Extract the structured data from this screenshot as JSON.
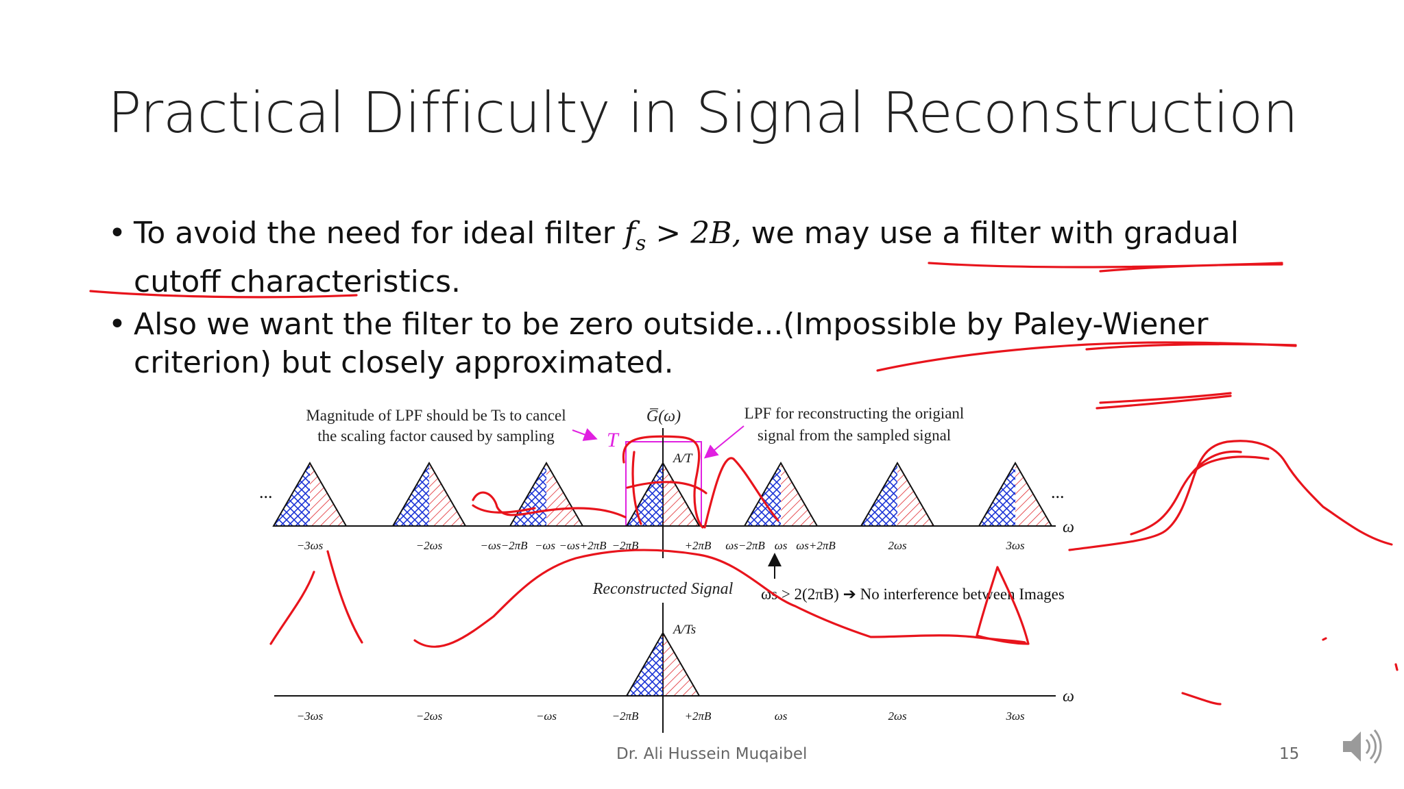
{
  "slide": {
    "title": "Practical Difficulty in Signal Reconstruction",
    "bullets": [
      {
        "before": "To avoid the need for ideal filter ",
        "math_fs": "f",
        "math_sub": "s",
        "math_rest": " > 2B,",
        "after": " we may use a filter with gradual cutoff characteristics."
      },
      {
        "text": "Also we want the filter to be zero outside...(Impossible by Paley-Wiener criterion) but closely approximated."
      }
    ],
    "footer_author": "Dr. Ali Hussein Muqaibel",
    "page_number": "15"
  },
  "figure": {
    "annotation_left_line1": "Magnitude of LPF should be Ts to cancel",
    "annotation_left_line2": "the scaling factor caused by sampling",
    "annotation_right_line1": "LPF for reconstructing the origianl",
    "annotation_right_line2": "signal from the sampled signal",
    "filter_gain_label": "T",
    "spectrum_label": "G̅(ω)",
    "peak_label_top": "A/T",
    "ellipsis": "...",
    "omega_axis_label": "ω",
    "top_ticks": [
      "−3ωs",
      "−2ωs",
      "−ωs−2πB",
      "−ωs",
      "−ωs+2πB",
      "−2πB",
      "+2πB",
      "ωs−2πB",
      "ωs",
      "ωs+2πB",
      "2ωs",
      "3ωs"
    ],
    "condition_text": "ωs > 2(2πB) ➔ No interference between Images",
    "reconstructed_label": "Reconstructed Signal",
    "peak_label_bottom": "A/Ts",
    "bottom_ticks": [
      "−3ωs",
      "−2ωs",
      "−ωs",
      "−2πB",
      "+2πB",
      "ωs",
      "2ωs",
      "3ωs"
    ]
  },
  "colors": {
    "ink_red": "#e8141c",
    "magenta": "#e020e0",
    "hatch_blue": "#1a33d6",
    "hatch_red": "#e0262b",
    "text": "#222222"
  },
  "icons": {
    "speaker": "speaker-icon"
  }
}
